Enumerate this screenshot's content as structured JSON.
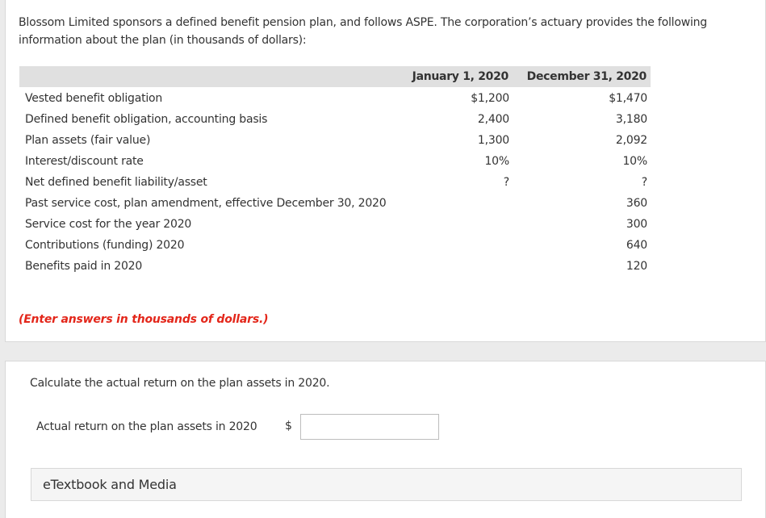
{
  "intro": "Blossom Limited sponsors a defined benefit pension plan, and follows ASPE. The corporation’s actuary provides the following information about the plan (in thousands of dollars):",
  "table": {
    "headers": [
      "January 1, 2020",
      "December 31, 2020"
    ],
    "rows": [
      {
        "label": "Vested benefit obligation",
        "jan": "$1,200",
        "dec": "$1,470"
      },
      {
        "label": "Defined benefit obligation, accounting basis",
        "jan": "2,400",
        "dec": "3,180"
      },
      {
        "label": "Plan assets (fair value)",
        "jan": "1,300",
        "dec": "2,092"
      },
      {
        "label": "Interest/discount rate",
        "jan": "10%",
        "dec": "10%"
      },
      {
        "label": "Net defined benefit liability/asset",
        "jan": "?",
        "dec": "?"
      },
      {
        "label": "Past service cost, plan amendment, effective December 30, 2020",
        "jan": "",
        "dec": "360"
      },
      {
        "label": "Service cost for the year 2020",
        "jan": "",
        "dec": "300"
      },
      {
        "label": "Contributions (funding) 2020",
        "jan": "",
        "dec": "640"
      },
      {
        "label": "Benefits paid in 2020",
        "jan": "",
        "dec": "120"
      }
    ]
  },
  "note": "(Enter answers in thousands of dollars.)",
  "question": "Calculate the actual return on the plan assets in 2020.",
  "answer": {
    "label": "Actual return on the plan assets in 2020",
    "currency": "$",
    "value": ""
  },
  "etextbook": "eTextbook and Media",
  "colors": {
    "note": "#e3261a",
    "header_bg": "#e0e0e0",
    "page_bg": "#ebebeb"
  }
}
